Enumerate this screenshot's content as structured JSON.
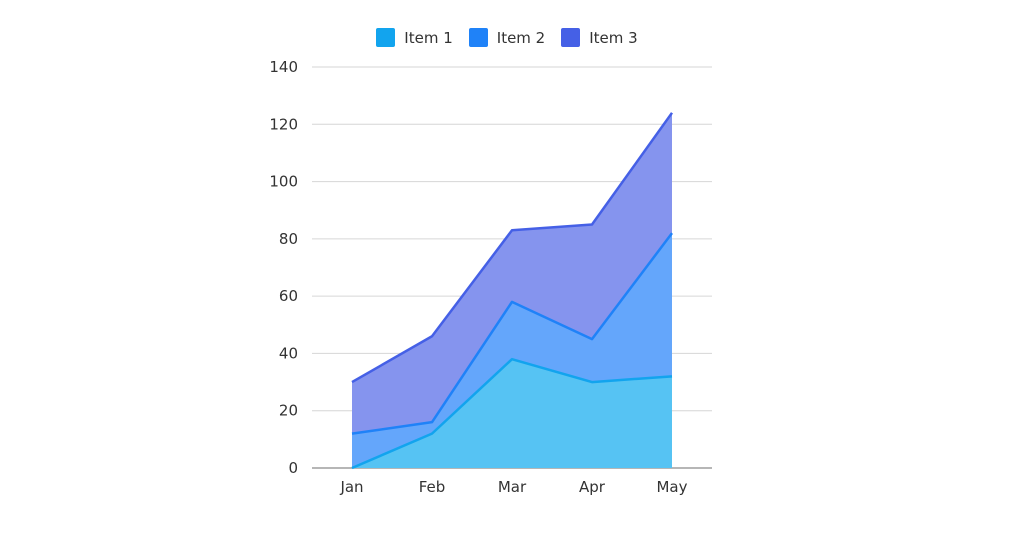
{
  "chart_data": {
    "type": "area",
    "stacked": true,
    "title": "",
    "xlabel": "",
    "ylabel": "",
    "categories": [
      "Jan",
      "Feb",
      "Mar",
      "Apr",
      "May"
    ],
    "series": [
      {
        "name": "Item 1",
        "values": [
          0,
          12,
          38,
          30,
          32
        ],
        "color": "#12A4EE",
        "fill": "#56C3F3"
      },
      {
        "name": "Item 2",
        "values": [
          12,
          4,
          20,
          15,
          50
        ],
        "color": "#1F82F8",
        "fill": "#64A6FB"
      },
      {
        "name": "Item 3",
        "values": [
          18,
          30,
          25,
          40,
          42
        ],
        "color": "#4560E6",
        "fill": "#8594EE"
      }
    ],
    "ylim": [
      0,
      140
    ],
    "yticks": [
      0,
      20,
      40,
      60,
      80,
      100,
      120,
      140
    ],
    "grid": true,
    "legend_position": "top"
  },
  "legend": {
    "items": [
      {
        "label": "Item 1",
        "color": "#12A4EE"
      },
      {
        "label": "Item 2",
        "color": "#1F82F8"
      },
      {
        "label": "Item 3",
        "color": "#4560E6"
      }
    ]
  }
}
